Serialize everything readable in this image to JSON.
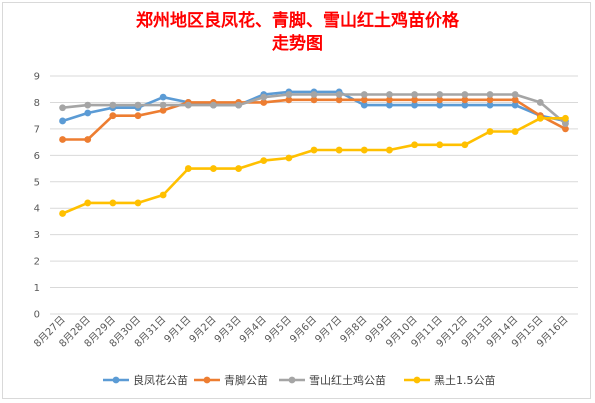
{
  "chart_data": {
    "type": "line",
    "title_lines": [
      "郑州地区良凤花、青脚、雪山红土鸡苗价格",
      "走势图"
    ],
    "xlabel": "",
    "ylabel": "",
    "ylim": [
      0,
      9
    ],
    "yticks": [
      0,
      1,
      2,
      3,
      4,
      5,
      6,
      7,
      8,
      9
    ],
    "grid": true,
    "legend_position": "bottom",
    "categories": [
      "8月27日",
      "8月28日",
      "8月29日",
      "8月30日",
      "8月31日",
      "9月1日",
      "9月2日",
      "9月3日",
      "9月4日",
      "9月5日",
      "9月6日",
      "9月7日",
      "9月8日",
      "9月9日",
      "9月10日",
      "9月11日",
      "9月12日",
      "9月13日",
      "9月14日",
      "9月15日",
      "9月16日"
    ],
    "series": [
      {
        "name": "良凤花公苗",
        "color": "#5b9bd5",
        "values": [
          7.3,
          7.6,
          7.8,
          7.8,
          8.2,
          8.0,
          7.9,
          7.9,
          8.3,
          8.4,
          8.4,
          8.4,
          7.9,
          7.9,
          7.9,
          7.9,
          7.9,
          7.9,
          7.9,
          7.5,
          7.3
        ]
      },
      {
        "name": "青脚公苗",
        "color": "#ed7d31",
        "values": [
          6.6,
          6.6,
          7.5,
          7.5,
          7.7,
          8.0,
          8.0,
          8.0,
          8.0,
          8.1,
          8.1,
          8.1,
          8.1,
          8.1,
          8.1,
          8.1,
          8.1,
          8.1,
          8.1,
          7.5,
          7.0
        ]
      },
      {
        "name": "雪山红土鸡公苗",
        "color": "#a5a5a5",
        "values": [
          7.8,
          7.9,
          7.9,
          7.9,
          7.9,
          7.9,
          7.9,
          7.9,
          8.2,
          8.3,
          8.3,
          8.3,
          8.3,
          8.3,
          8.3,
          8.3,
          8.3,
          8.3,
          8.3,
          8.0,
          7.2
        ]
      },
      {
        "name": "黑土1.5公苗",
        "color": "#ffc000",
        "values": [
          3.8,
          4.2,
          4.2,
          4.2,
          4.5,
          5.5,
          5.5,
          5.5,
          5.8,
          5.9,
          6.2,
          6.2,
          6.2,
          6.2,
          6.4,
          6.4,
          6.4,
          6.9,
          6.9,
          7.4,
          7.4
        ]
      }
    ]
  }
}
